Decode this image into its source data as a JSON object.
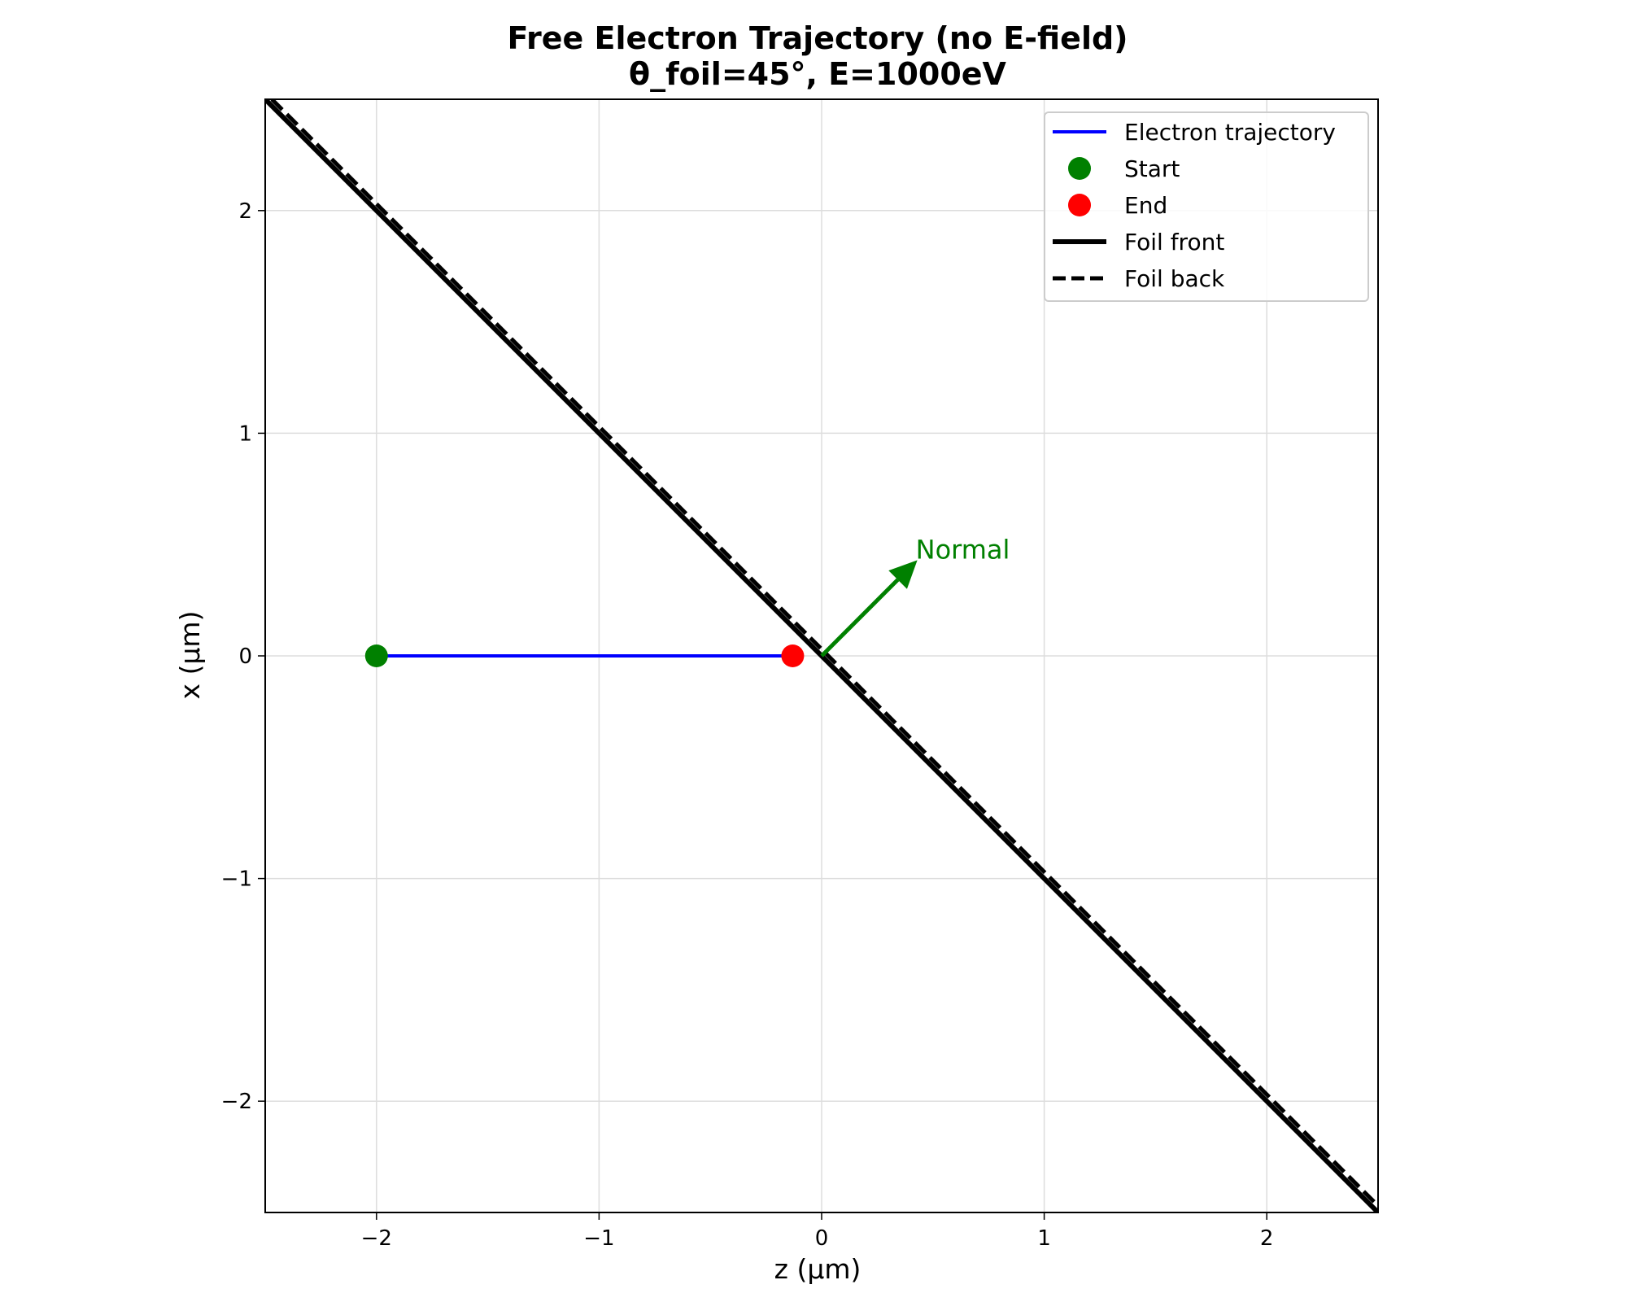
{
  "chart_data": {
    "type": "line",
    "title_line1": "Free Electron Trajectory (no E-field)",
    "title_line2": "θ_foil=45°, E=1000eV",
    "xlabel": "z (μm)",
    "ylabel": "x (μm)",
    "xlim": [
      -2.5,
      2.5
    ],
    "ylim": [
      -2.5,
      2.5
    ],
    "xticks": [
      -2,
      -1,
      0,
      1,
      2
    ],
    "yticks": [
      -2,
      -1,
      0,
      1,
      2
    ],
    "xtick_labels": [
      "−2",
      "−1",
      "0",
      "1",
      "2"
    ],
    "ytick_labels": [
      "−2",
      "−1",
      "0",
      "1",
      "2"
    ],
    "grid": true,
    "legend_position": "top-right",
    "series": [
      {
        "name": "Electron trajectory",
        "style": "line",
        "color": "#0000ff",
        "x": [
          -2.0,
          -0.13
        ],
        "y": [
          0,
          0
        ]
      },
      {
        "name": "Start",
        "style": "marker",
        "color": "#008000",
        "x": [
          -2.0
        ],
        "y": [
          0
        ]
      },
      {
        "name": "End",
        "style": "marker",
        "color": "#ff0000",
        "x": [
          -0.13
        ],
        "y": [
          0
        ]
      },
      {
        "name": "Foil front",
        "style": "thick-line",
        "color": "#000000",
        "x": [
          -2.5,
          2.5
        ],
        "y": [
          2.5,
          -2.5
        ]
      },
      {
        "name": "Foil back",
        "style": "dashed-line",
        "color": "#000000",
        "x": [
          -2.47,
          2.5
        ],
        "y": [
          2.5,
          -2.47
        ]
      }
    ],
    "annotations": [
      {
        "text": "Normal",
        "color": "#008000",
        "arrow_from": [
          0,
          0
        ],
        "arrow_to": [
          0.43,
          0.43
        ]
      }
    ]
  }
}
